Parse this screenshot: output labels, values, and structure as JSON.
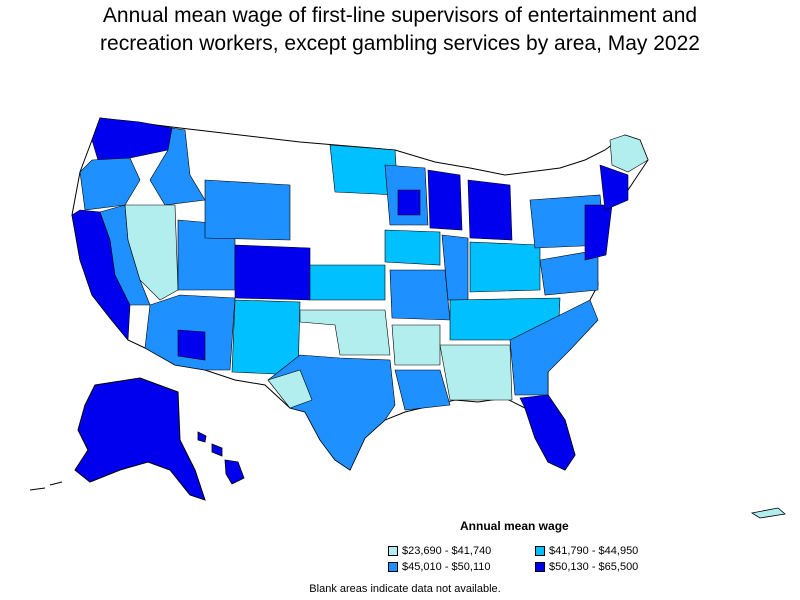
{
  "title_line1": "Annual mean wage of first-line supervisors of entertainment and",
  "title_line2": "recreation workers, except gambling services by area, May 2022",
  "legend": {
    "title": "Annual mean wage",
    "items": [
      {
        "label": "$23,690 - $41,740",
        "color": "#b2eeee"
      },
      {
        "label": "$41,790 - $44,950",
        "color": "#00c0ff"
      },
      {
        "label": "$45,010 - $50,110",
        "color": "#1e90ff"
      },
      {
        "label": "$50,130 - $65,500",
        "color": "#0000ee"
      }
    ]
  },
  "footnote": "Blank areas indicate data not available.",
  "colors": {
    "tier1": "#b2eeee",
    "tier2": "#00c0ff",
    "tier3": "#1e90ff",
    "tier4": "#0000ee",
    "blank": "#ffffff",
    "border": "#000000"
  }
}
